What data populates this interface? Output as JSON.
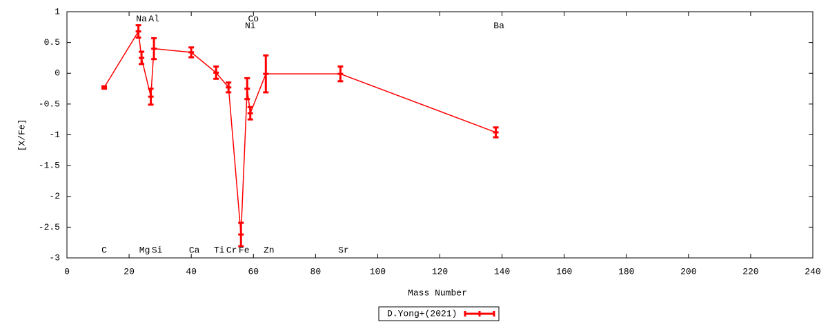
{
  "chart_data": {
    "type": "line",
    "x_label": "Mass Number",
    "y_label": "[X/Fe]",
    "xlim": [
      0,
      240
    ],
    "xticks": [
      0,
      20,
      40,
      60,
      80,
      100,
      120,
      140,
      160,
      180,
      200,
      220,
      240
    ],
    "ylim": [
      -3,
      1
    ],
    "yticks": [
      1,
      0.5,
      0,
      -0.5,
      -1,
      -1.5,
      -2,
      -2.5,
      -3
    ],
    "grid": false,
    "legend": "bottom-center",
    "series": [
      {
        "name": "D.Yong+(2021)",
        "color": "#ff0000",
        "x": [
          12,
          23,
          24,
          27,
          28,
          40,
          48,
          52,
          56,
          58,
          59,
          64,
          88,
          138
        ],
        "values": [
          -0.23,
          0.68,
          0.25,
          -0.38,
          0.4,
          0.34,
          0.01,
          -0.23,
          -2.62,
          -0.25,
          -0.65,
          -0.01,
          -0.01,
          -0.96
        ],
        "errors": [
          0.02,
          0.1,
          0.1,
          0.13,
          0.17,
          0.08,
          0.1,
          0.08,
          0.19,
          0.17,
          0.1,
          0.3,
          0.12,
          0.08
        ]
      }
    ],
    "annotations": [
      {
        "text": "C",
        "x": 12,
        "y": -2.88
      },
      {
        "text": "Na",
        "x": 24,
        "y": 0.88
      },
      {
        "text": "Al",
        "x": 28,
        "y": 0.88
      },
      {
        "text": "Mg",
        "x": 25,
        "y": -2.88
      },
      {
        "text": "Si",
        "x": 29,
        "y": -2.88
      },
      {
        "text": "Ca",
        "x": 41,
        "y": -2.88
      },
      {
        "text": "Ti",
        "x": 49,
        "y": -2.88
      },
      {
        "text": "Cr",
        "x": 53,
        "y": -2.88
      },
      {
        "text": "Fe",
        "x": 57,
        "y": -2.88
      },
      {
        "text": "Co",
        "x": 60,
        "y": 0.88
      },
      {
        "text": "Ni",
        "x": 59,
        "y": 0.77
      },
      {
        "text": "Zn",
        "x": 65,
        "y": -2.88
      },
      {
        "text": "Sr",
        "x": 89,
        "y": -2.88
      },
      {
        "text": "Ba",
        "x": 139,
        "y": 0.77
      }
    ]
  }
}
